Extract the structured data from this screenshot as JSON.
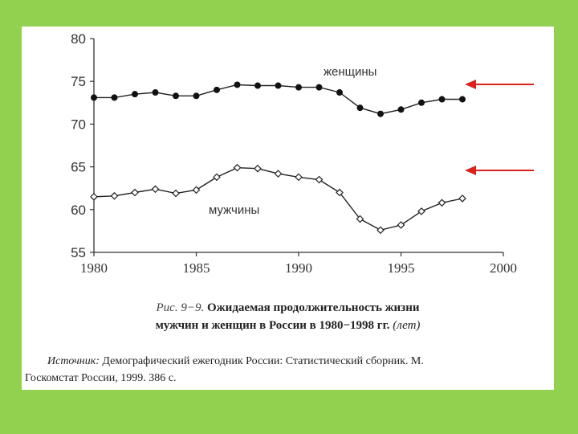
{
  "page": {
    "background_color": "#92d050",
    "arrow_color": "#e0201b"
  },
  "chart_data": {
    "type": "line",
    "xlim": [
      1980,
      2000
    ],
    "ylim": [
      55,
      80
    ],
    "x_ticks": [
      "1980",
      "1985",
      "1990",
      "1995",
      "2000"
    ],
    "y_ticks": [
      "55",
      "60",
      "65",
      "70",
      "75",
      "80"
    ],
    "grid": false,
    "series": [
      {
        "name": "женщины",
        "marker": "filled-circle",
        "x": [
          1980,
          1981,
          1982,
          1983,
          1984,
          1985,
          1986,
          1987,
          1988,
          1989,
          1990,
          1991,
          1992,
          1993,
          1994,
          1995,
          1996,
          1997,
          1998
        ],
        "y": [
          73.1,
          73.1,
          73.5,
          73.7,
          73.3,
          73.3,
          74.0,
          74.6,
          74.5,
          74.5,
          74.3,
          74.3,
          73.7,
          71.9,
          71.2,
          71.7,
          72.5,
          72.9,
          72.9
        ]
      },
      {
        "name": "мужчины",
        "marker": "open-diamond",
        "x": [
          1980,
          1981,
          1982,
          1983,
          1984,
          1985,
          1986,
          1987,
          1988,
          1989,
          1990,
          1991,
          1992,
          1993,
          1994,
          1995,
          1996,
          1997,
          1998
        ],
        "y": [
          61.5,
          61.6,
          62.0,
          62.4,
          61.9,
          62.3,
          63.8,
          64.9,
          64.8,
          64.2,
          63.8,
          63.5,
          62.0,
          58.9,
          57.6,
          58.2,
          59.8,
          60.8,
          61.3
        ]
      }
    ]
  },
  "caption": {
    "figure_label": "Рис. 9−9.",
    "title_line1": "Ожидаемая продолжительность жизни",
    "title_line2": "мужчин и женщин в России в 1980−1998 гг.",
    "units": "(лет)"
  },
  "source": {
    "label": "Источник:",
    "line1": "Демографический ежегодник России: Статистический сборник. М.",
    "line2": "Госкомстат России, 1999. 386 с."
  }
}
